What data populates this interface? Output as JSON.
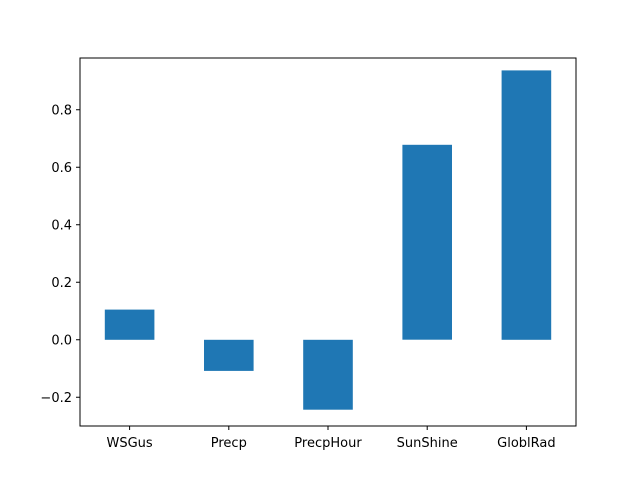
{
  "chart_data": {
    "type": "bar",
    "categories": [
      "WSGus",
      "Precp",
      "PrecpHour",
      "SunShine",
      "GloblRad"
    ],
    "values": [
      0.105,
      -0.108,
      -0.243,
      0.678,
      0.937
    ],
    "ylim": [
      -0.3,
      0.98
    ],
    "yticks": [
      -0.2,
      0.0,
      0.2,
      0.4,
      0.6,
      0.8
    ],
    "ytick_labels": [
      "−0.2",
      "0.0",
      "0.2",
      "0.4",
      "0.6",
      "0.8"
    ],
    "bar_color": "#1f77b4",
    "grid": false
  }
}
